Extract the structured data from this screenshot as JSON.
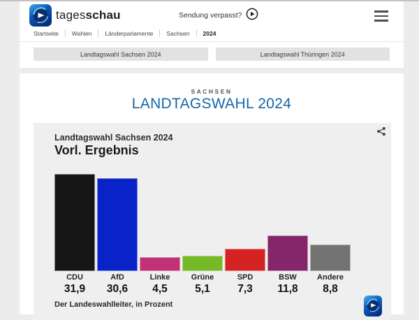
{
  "header": {
    "brand_regular": "tages",
    "brand_bold": "schau",
    "sendung_verpasst": "Sendung verpasst?",
    "breadcrumb": [
      "Startseite",
      "Wahlen",
      "Länderparlamente",
      "Sachsen",
      "2024"
    ]
  },
  "nav_buttons": {
    "sachsen": "Landtagswahl Sachsen 2024",
    "thueringen": "Landtagswahl Thüringen 2024"
  },
  "main": {
    "kicker": "SACHSEN",
    "title": "LANDTAGSWAHL 2024",
    "title_color": "#1566a9"
  },
  "chart_card": {
    "subtitle": "Landtagswahl Sachsen 2024",
    "title": "Vorl. Ergebnis",
    "source": "Der Landeswahlleiter, in Prozent"
  },
  "chart_data": {
    "type": "bar",
    "title": "Vorl. Ergebnis",
    "subtitle": "Landtagswahl Sachsen 2024",
    "categories": [
      "CDU",
      "AfD",
      "Linke",
      "Grüne",
      "SPD",
      "BSW",
      "Andere"
    ],
    "values": [
      31.9,
      30.6,
      4.5,
      5.1,
      7.3,
      11.8,
      8.8
    ],
    "value_labels": [
      "31,9",
      "30,6",
      "4,5",
      "5,1",
      "7,3",
      "11,8",
      "8,8"
    ],
    "colors": [
      "#161616",
      "#0a23c9",
      "#c03276",
      "#75b928",
      "#d42322",
      "#85266b",
      "#737373"
    ],
    "unit": "Prozent",
    "ylabel": "Prozent",
    "ylim": [
      0,
      35
    ],
    "grid": false,
    "legend": "none",
    "source": "Der Landeswahlleiter, in Prozent"
  },
  "icons": {
    "tagesschau_logo": "blue rounded square with ARD globe",
    "play_icon": "circled play button",
    "menu_icon": "hamburger menu",
    "share_icon": "share nodes"
  }
}
